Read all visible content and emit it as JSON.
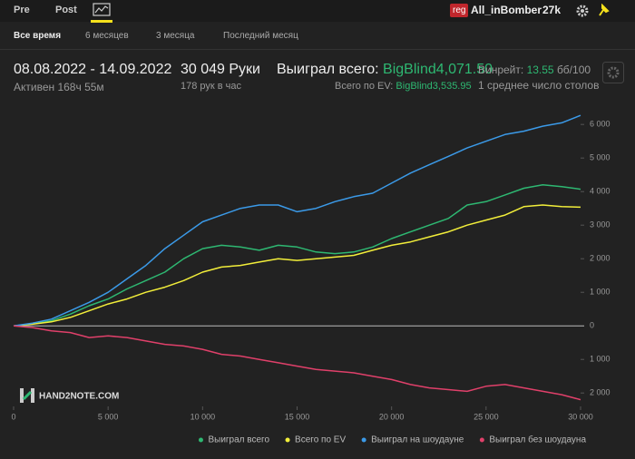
{
  "header": {
    "tabs": [
      "Pre",
      "Post"
    ],
    "badge": "reg",
    "user": "All_inBomber",
    "count": "27k"
  },
  "periods": [
    "Все время",
    "6 месяцев",
    "3 месяца",
    "Последний месяц"
  ],
  "stats": {
    "dates": "08.08.2022 - 14.09.2022",
    "active": "Активен 168ч 55м",
    "hands": "30 049 Руки",
    "hands_per_hour": "178 рук в час",
    "won_label": "Выиграл всего:",
    "won_value": "BigBlind4,071.50",
    "ev_label": "Всего по EV:",
    "ev_value": "BigBlind3,535.95",
    "winrate_label": "Винрейт:",
    "winrate_value": "13.55",
    "winrate_unit": "бб/100",
    "tables": "1 среднее число столов"
  },
  "watermark": "HAND2NOTE.COM",
  "chart_data": {
    "type": "line",
    "x": [
      0,
      1000,
      2000,
      3000,
      4000,
      5000,
      6000,
      7000,
      8000,
      9000,
      10000,
      11000,
      12000,
      13000,
      14000,
      15000,
      16000,
      17000,
      18000,
      19000,
      20000,
      21000,
      22000,
      23000,
      24000,
      25000,
      26000,
      27000,
      28000,
      29000,
      30000
    ],
    "series": [
      {
        "name": "Выиграл всего",
        "color": "#2eb872",
        "values": [
          0,
          60,
          150,
          350,
          600,
          800,
          1100,
          1350,
          1600,
          2000,
          2300,
          2400,
          2350,
          2250,
          2400,
          2350,
          2200,
          2150,
          2200,
          2350,
          2600,
          2800,
          3000,
          3200,
          3600,
          3700,
          3900,
          4100,
          4200,
          4150,
          4071
        ]
      },
      {
        "name": "Всего по EV",
        "color": "#f2ee3a",
        "values": [
          0,
          50,
          120,
          250,
          450,
          650,
          800,
          1000,
          1150,
          1350,
          1600,
          1750,
          1800,
          1900,
          2000,
          1950,
          2000,
          2050,
          2100,
          2250,
          2400,
          2500,
          2650,
          2800,
          3000,
          3150,
          3300,
          3550,
          3600,
          3550,
          3536
        ]
      },
      {
        "name": "Выиграл на шоудауне",
        "color": "#3b9ae8",
        "values": [
          0,
          80,
          200,
          450,
          700,
          1000,
          1400,
          1800,
          2300,
          2700,
          3100,
          3300,
          3500,
          3600,
          3600,
          3400,
          3500,
          3700,
          3850,
          3950,
          4250,
          4550,
          4800,
          5050,
          5300,
          5500,
          5700,
          5800,
          5950,
          6050,
          6270
        ]
      },
      {
        "name": "Выиграл без шоудауна",
        "color": "#e0406a",
        "values": [
          0,
          -50,
          -150,
          -200,
          -350,
          -300,
          -350,
          -450,
          -550,
          -600,
          -700,
          -850,
          -900,
          -1000,
          -1100,
          -1200,
          -1300,
          -1350,
          -1400,
          -1500,
          -1600,
          -1750,
          -1850,
          -1900,
          -1950,
          -1800,
          -1750,
          -1850,
          -1950,
          -2050,
          -2200
        ]
      }
    ],
    "xlim": [
      0,
      30000
    ],
    "xticks": [
      0,
      {
        "value": 5000,
        "label": "5 000"
      },
      {
        "value": 10000,
        "label": "10 000"
      },
      {
        "value": 15000,
        "label": "15 000"
      },
      {
        "value": 20000,
        "label": "20 000"
      },
      {
        "value": 25000,
        "label": "25 000"
      },
      {
        "value": 30000,
        "label": "30 000"
      }
    ],
    "ylim": [
      -2400,
      6600
    ],
    "yticks": [
      {
        "value": -2000,
        "label": "2 000"
      },
      {
        "value": -1000,
        "label": "1 000"
      },
      0,
      {
        "value": 1000,
        "label": "1 000"
      },
      {
        "value": 2000,
        "label": "2 000"
      },
      {
        "value": 3000,
        "label": "3 000"
      },
      {
        "value": 4000,
        "label": "4 000"
      },
      {
        "value": 5000,
        "label": "5 000"
      },
      {
        "value": 6000,
        "label": "6 000"
      }
    ],
    "grid": false
  }
}
